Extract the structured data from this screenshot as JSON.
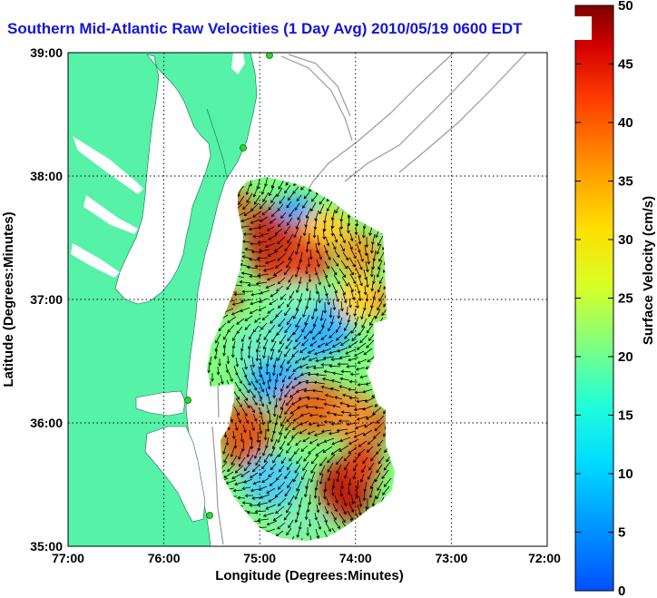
{
  "title": "Southern Mid-Atlantic Raw Velocities (1 Day Avg) 2010/05/19 0600 EDT",
  "axes": {
    "xlabel": "Longitude (Degrees:Minutes)",
    "ylabel": "Latitude (Degrees:Minutes)",
    "x_ticks": [
      "77:00",
      "76:00",
      "75:00",
      "74:00",
      "73:00",
      "72:00"
    ],
    "y_ticks": [
      "39:00",
      "38:00",
      "37:00",
      "36:00",
      "35:00"
    ]
  },
  "colorbar": {
    "label": "Surface Velocity (cm/s)",
    "ticks": [
      "0",
      "5",
      "10",
      "15",
      "20",
      "25",
      "30",
      "35",
      "40",
      "45",
      "50"
    ],
    "min": 0,
    "max": 50
  },
  "colors": {
    "land": "#55f2a8",
    "title": "#1414d8",
    "contour": "#9a9a9a",
    "station": "#2fd62f",
    "arrows": "#000000"
  },
  "chart_data": {
    "type": "heatmap",
    "title": "Southern Mid-Atlantic Raw Velocities (1 Day Avg) 2010/05/19 0600 EDT",
    "xlabel": "Longitude (Degrees:Minutes)",
    "ylabel": "Latitude (Degrees:Minutes)",
    "xlim": [
      -77,
      -72
    ],
    "ylim": [
      35,
      39
    ],
    "value_range": [
      0,
      50
    ],
    "units": "cm/s",
    "colormap": "jet",
    "grid": true
  }
}
